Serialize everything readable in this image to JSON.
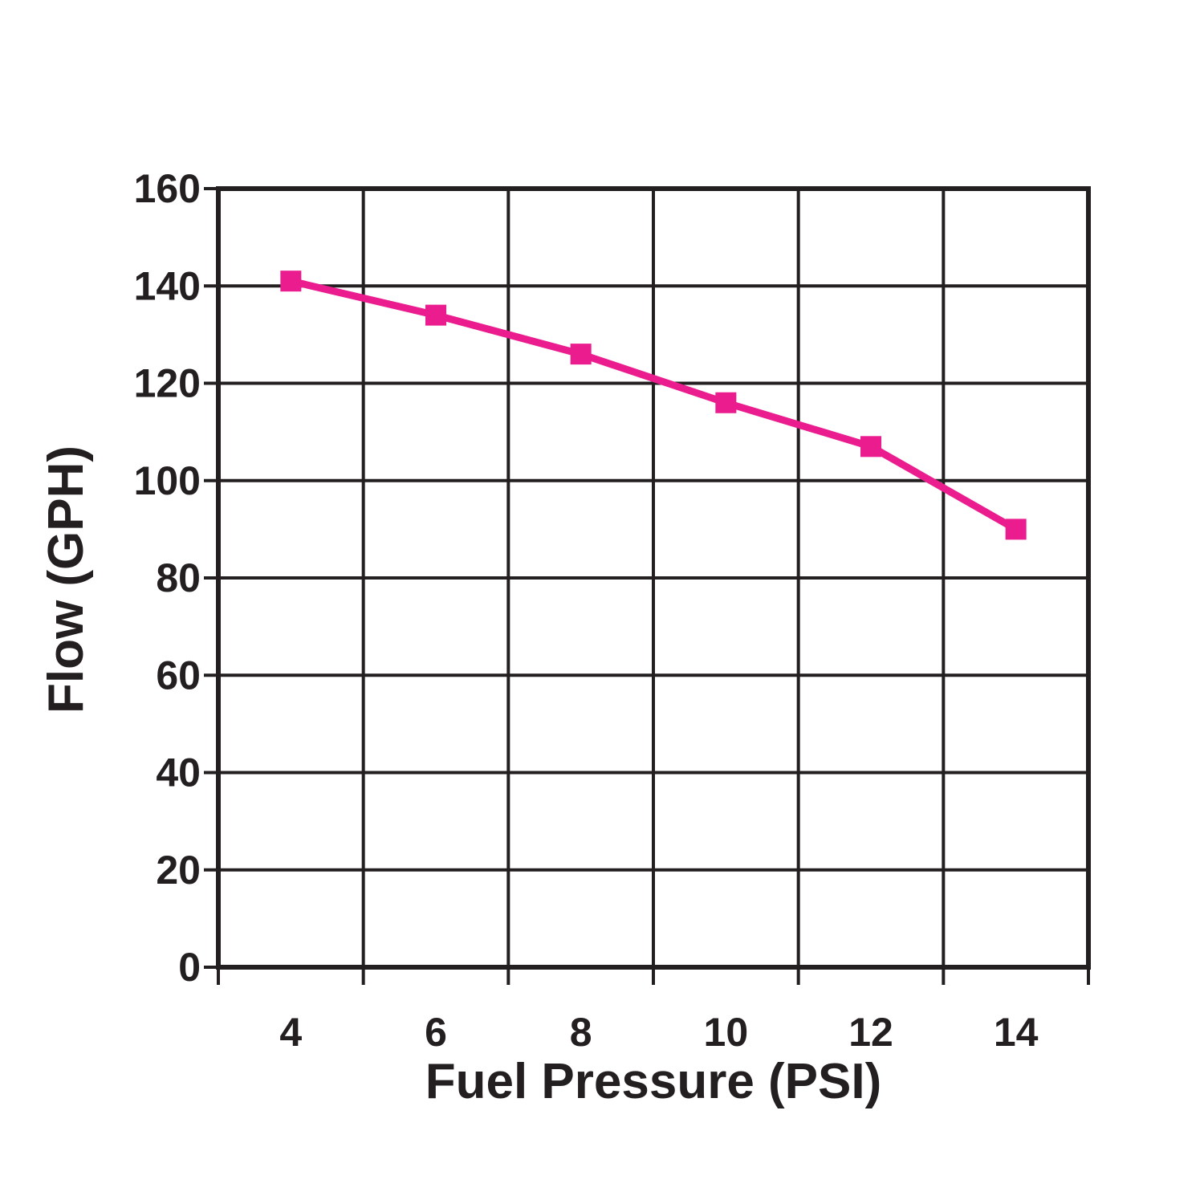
{
  "chart_data": {
    "type": "line",
    "title": "",
    "xlabel": "Fuel Pressure (PSI)",
    "ylabel": "Flow (GPH)",
    "categories": [
      4,
      6,
      8,
      10,
      12,
      14
    ],
    "series": [
      {
        "name": "Flow",
        "values": [
          141,
          134,
          126,
          116,
          107,
          90
        ]
      }
    ],
    "ylim": [
      0,
      160
    ],
    "ytick_step": 20,
    "yticks": [
      0,
      20,
      40,
      60,
      80,
      100,
      120,
      140,
      160
    ],
    "grid": "on",
    "legend": "none",
    "marker": "square",
    "colors": {
      "series": "#ea1c8e",
      "grid": "#231f20",
      "text": "#231f20",
      "background": "#ffffff"
    }
  }
}
